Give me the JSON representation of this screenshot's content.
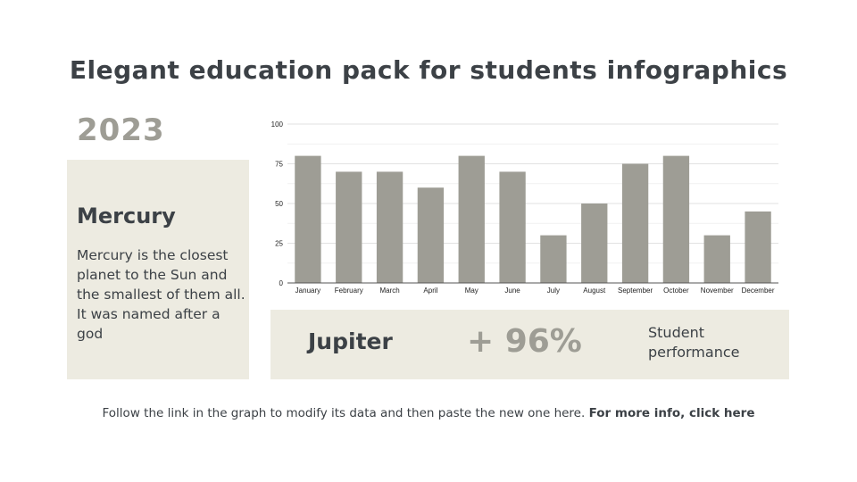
{
  "title": "Elegant education pack for students infographics",
  "year": "2023",
  "card": {
    "title": "Mercury",
    "text": "Mercury is the closest planet to the Sun and the smallest of them all. It was named after a god"
  },
  "stat": {
    "name": "Jupiter",
    "value": "+ 96%",
    "label_line1": "Student",
    "label_line2": "performance"
  },
  "footer": {
    "text": "Follow the link in the graph to modify its data and then paste the new one here. ",
    "link": "For more info, click here"
  },
  "colors": {
    "bar": "#9e9d95",
    "panel": "#edebe1",
    "text_dark": "#3c4146",
    "accent_grey": "#9e9d95"
  },
  "chart_data": {
    "type": "bar",
    "title": "",
    "xlabel": "",
    "ylabel": "",
    "categories": [
      "January",
      "February",
      "March",
      "April",
      "May",
      "June",
      "July",
      "August",
      "September",
      "October",
      "November",
      "December"
    ],
    "values": [
      80,
      70,
      70,
      60,
      80,
      70,
      30,
      50,
      75,
      80,
      30,
      45
    ],
    "ylim": [
      0,
      100
    ],
    "yticks": [
      0,
      25,
      50,
      75,
      100
    ],
    "grid": true,
    "legend": "none"
  }
}
